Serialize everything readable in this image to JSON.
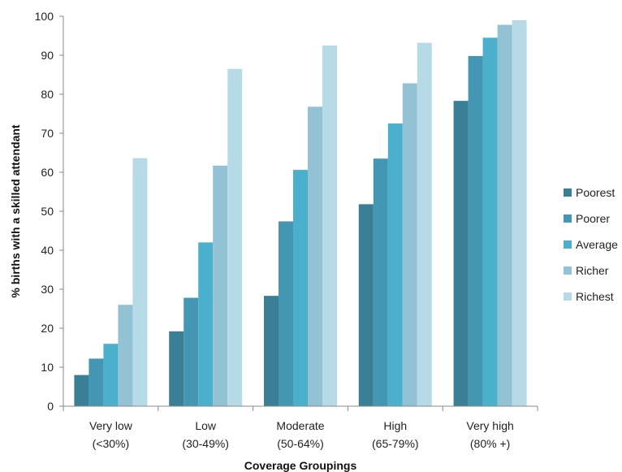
{
  "chart_data": {
    "type": "bar",
    "title": "",
    "xlabel": "Coverage Groupings",
    "ylabel": "% births with a skilled attendant",
    "ylim": [
      0,
      100
    ],
    "yticks": [
      0,
      10,
      20,
      30,
      40,
      50,
      60,
      70,
      80,
      90,
      100
    ],
    "grid": false,
    "legend_position": "right",
    "categories": [
      [
        "Very low",
        "(<30%)"
      ],
      [
        "Low",
        "(30-49%)"
      ],
      [
        "Moderate",
        "(50-64%)"
      ],
      [
        "High",
        "(65-79%)"
      ],
      [
        "Very high",
        "(80% +)"
      ]
    ],
    "series": [
      {
        "name": "Poorest",
        "color": "#3a7f96",
        "values": [
          8,
          19.2,
          28.3,
          51.8,
          78.3
        ]
      },
      {
        "name": "Poorer",
        "color": "#4397b3",
        "values": [
          12.2,
          27.8,
          47.4,
          63.5,
          89.8
        ]
      },
      {
        "name": "Average",
        "color": "#4ab0cb",
        "values": [
          16,
          42,
          60.6,
          72.5,
          94.5
        ]
      },
      {
        "name": "Richer",
        "color": "#92c2d4",
        "values": [
          26,
          61.7,
          76.8,
          82.8,
          97.8
        ]
      },
      {
        "name": "Richest",
        "color": "#b7dbe6",
        "values": [
          63.6,
          86.5,
          92.5,
          93.2,
          99
        ]
      }
    ]
  }
}
